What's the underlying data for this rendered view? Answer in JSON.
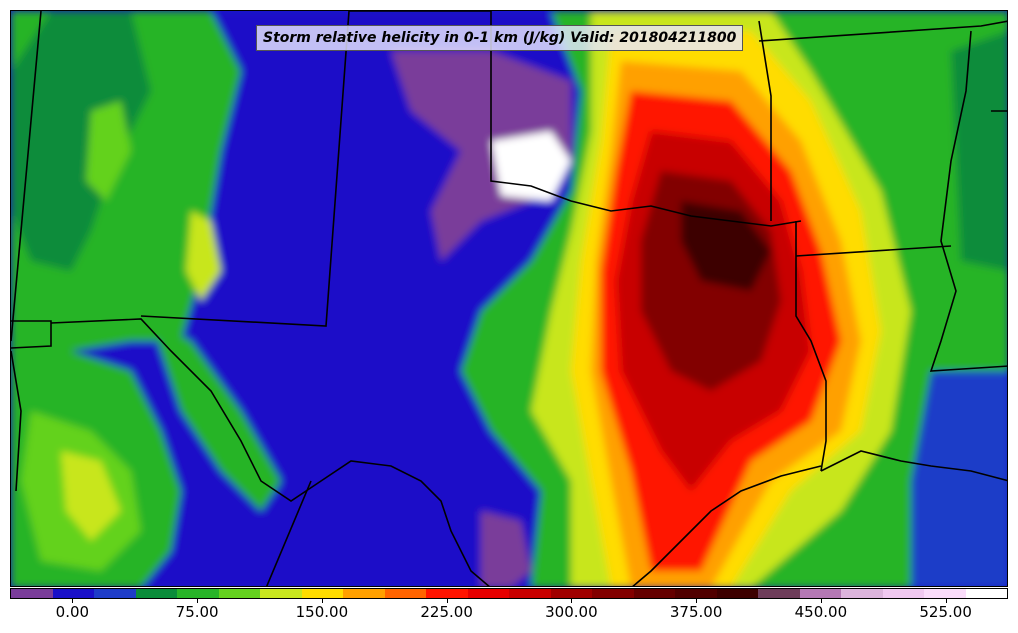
{
  "title": "Storm relative helicity in 0-1 km (J/kg) Valid: 201804211800",
  "colorbar": {
    "colors": [
      "#7a3c9a",
      "#1a10c8",
      "#1e3cc8",
      "#0a8c3a",
      "#28b428",
      "#64d21e",
      "#c8e61e",
      "#ffdc00",
      "#ffa000",
      "#ff6400",
      "#ff1400",
      "#e60000",
      "#c80000",
      "#a00000",
      "#820000",
      "#640000",
      "#500000",
      "#3c0000",
      "#6e3c5a",
      "#b478b4",
      "#dcb4dc",
      "#f0c8f0",
      "#fadcfa",
      "#ffffff"
    ],
    "tick_labels": [
      "0.00",
      "75.00",
      "150.00",
      "225.00",
      "300.00",
      "375.00",
      "450.00",
      "525.00"
    ],
    "tick_values": [
      0,
      75,
      150,
      225,
      300,
      375,
      450,
      525
    ],
    "range": [
      -37.5,
      562.5
    ]
  },
  "field_colors": {
    "purple": "#7a3c9a",
    "blue": "#1a10c8",
    "blue2": "#1e3cc8",
    "green_dark": "#0a8c3a",
    "green": "#28b428",
    "green_light": "#64d21e",
    "yellow_green": "#c8e61e",
    "yellow": "#ffdc00",
    "orange": "#ffa000",
    "orange_red": "#ff6400",
    "red": "#ff1400",
    "dark_red": "#c80000",
    "maroon": "#820000",
    "darkest": "#3c0000",
    "white": "#ffffff"
  }
}
